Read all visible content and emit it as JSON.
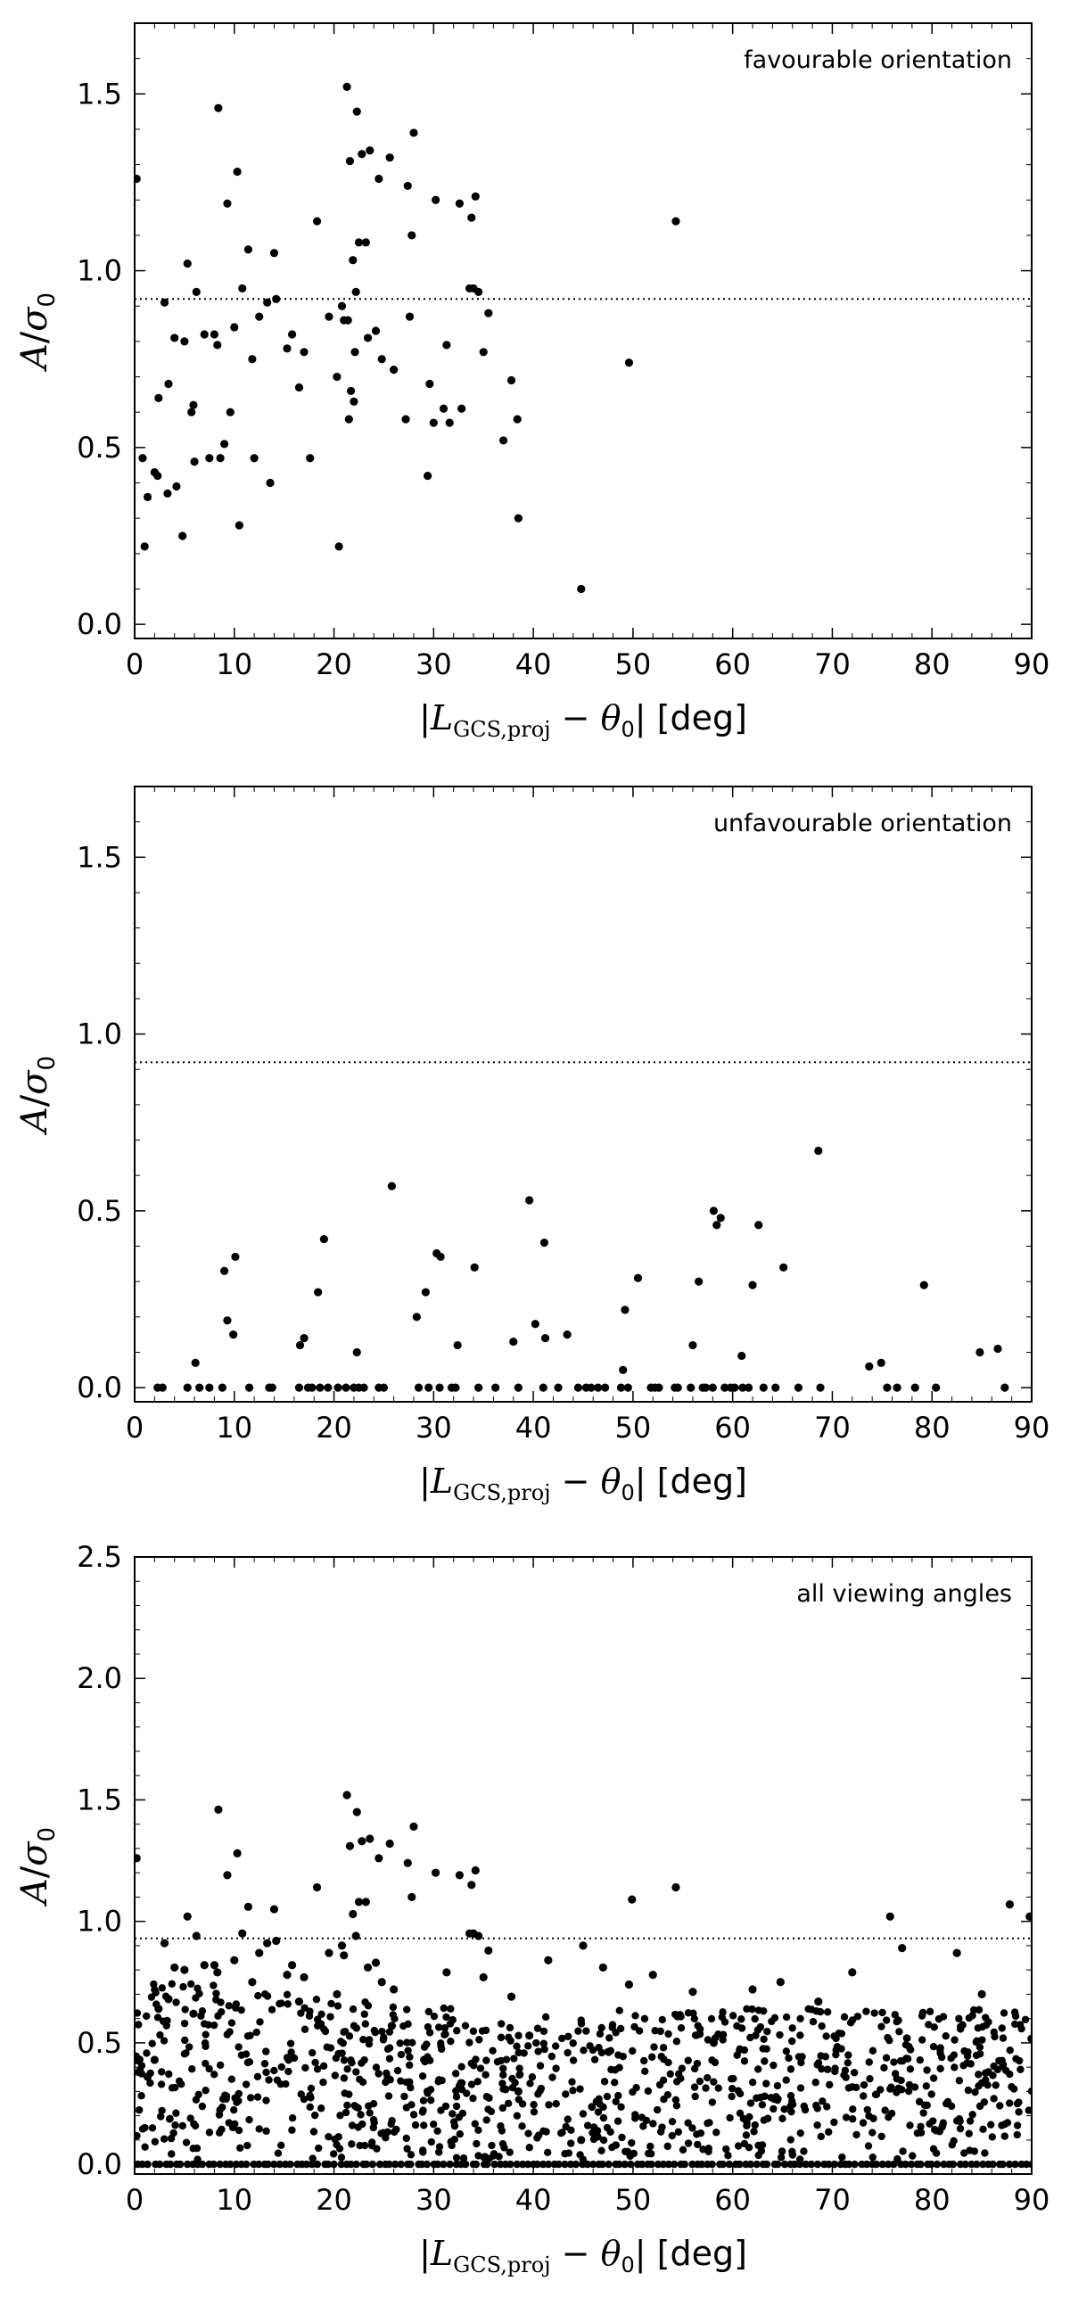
{
  "chart_data": [
    {
      "type": "scatter",
      "title": "",
      "annotation": "favourable orientation",
      "xlabel": "|L_GCS,proj − θ_0| [deg]",
      "ylabel": "A/σ_0",
      "xlim": [
        0,
        90
      ],
      "ylim": [
        -0.04,
        1.7
      ],
      "x_ticks": [
        0,
        10,
        20,
        30,
        40,
        50,
        60,
        70,
        80,
        90
      ],
      "y_ticks": [
        0.0,
        0.5,
        1.0,
        1.5
      ],
      "y_tick_labels": [
        "0.0",
        "0.5",
        "1.0",
        "1.5"
      ],
      "threshold": 0.92,
      "points": [
        [
          0.2,
          1.26
        ],
        [
          0.8,
          0.47
        ],
        [
          1.0,
          0.22
        ],
        [
          1.3,
          0.36
        ],
        [
          2.0,
          0.43
        ],
        [
          2.3,
          0.42
        ],
        [
          2.4,
          0.64
        ],
        [
          3.0,
          0.91
        ],
        [
          3.3,
          0.37
        ],
        [
          3.4,
          0.68
        ],
        [
          4.0,
          0.81
        ],
        [
          4.2,
          0.39
        ],
        [
          4.8,
          0.25
        ],
        [
          5.0,
          0.8
        ],
        [
          5.3,
          1.02
        ],
        [
          5.7,
          0.6
        ],
        [
          5.9,
          0.62
        ],
        [
          6.0,
          0.46
        ],
        [
          6.2,
          0.94
        ],
        [
          7.0,
          0.82
        ],
        [
          7.5,
          0.47
        ],
        [
          8.0,
          0.82
        ],
        [
          8.3,
          0.79
        ],
        [
          8.4,
          1.46
        ],
        [
          8.6,
          0.47
        ],
        [
          9.0,
          0.51
        ],
        [
          9.3,
          1.19
        ],
        [
          9.6,
          0.6
        ],
        [
          10.0,
          0.84
        ],
        [
          10.3,
          1.28
        ],
        [
          10.5,
          0.28
        ],
        [
          10.8,
          0.95
        ],
        [
          11.4,
          1.06
        ],
        [
          11.8,
          0.75
        ],
        [
          12.0,
          0.47
        ],
        [
          12.5,
          0.87
        ],
        [
          13.3,
          0.91
        ],
        [
          13.6,
          0.4
        ],
        [
          14.0,
          1.05
        ],
        [
          14.2,
          0.92
        ],
        [
          15.3,
          0.78
        ],
        [
          15.8,
          0.82
        ],
        [
          16.5,
          0.67
        ],
        [
          17.0,
          0.77
        ],
        [
          17.6,
          0.47
        ],
        [
          18.3,
          1.14
        ],
        [
          19.5,
          0.87
        ],
        [
          20.3,
          0.7
        ],
        [
          20.5,
          0.22
        ],
        [
          20.8,
          0.9
        ],
        [
          21.0,
          0.86
        ],
        [
          21.3,
          1.52
        ],
        [
          21.4,
          0.86
        ],
        [
          21.5,
          0.58
        ],
        [
          21.6,
          1.31
        ],
        [
          21.7,
          0.66
        ],
        [
          21.9,
          1.03
        ],
        [
          22.0,
          0.63
        ],
        [
          22.1,
          0.77
        ],
        [
          22.2,
          0.94
        ],
        [
          22.3,
          1.45
        ],
        [
          22.5,
          1.08
        ],
        [
          22.8,
          1.33
        ],
        [
          23.2,
          1.08
        ],
        [
          23.4,
          0.81
        ],
        [
          23.6,
          1.34
        ],
        [
          24.2,
          0.83
        ],
        [
          24.5,
          1.26
        ],
        [
          24.8,
          0.75
        ],
        [
          25.6,
          1.32
        ],
        [
          26.0,
          0.72
        ],
        [
          27.2,
          0.58
        ],
        [
          27.4,
          1.24
        ],
        [
          27.6,
          0.87
        ],
        [
          27.8,
          1.1
        ],
        [
          28.0,
          1.39
        ],
        [
          29.4,
          0.42
        ],
        [
          29.6,
          0.68
        ],
        [
          30.0,
          0.57
        ],
        [
          30.2,
          1.2
        ],
        [
          31.0,
          0.61
        ],
        [
          31.3,
          0.79
        ],
        [
          31.6,
          0.57
        ],
        [
          32.6,
          1.19
        ],
        [
          32.8,
          0.61
        ],
        [
          33.6,
          0.95
        ],
        [
          33.8,
          1.15
        ],
        [
          34.0,
          0.95
        ],
        [
          34.2,
          1.21
        ],
        [
          34.5,
          0.94
        ],
        [
          35.0,
          0.77
        ],
        [
          35.5,
          0.88
        ],
        [
          37.0,
          0.52
        ],
        [
          37.8,
          0.69
        ],
        [
          38.4,
          0.58
        ],
        [
          38.5,
          0.3
        ],
        [
          44.8,
          0.1
        ],
        [
          49.6,
          0.74
        ],
        [
          54.3,
          1.14
        ]
      ]
    },
    {
      "type": "scatter",
      "title": "",
      "annotation": "unfavourable orientation",
      "xlabel": "|L_GCS,proj − θ_0| [deg]",
      "ylabel": "A/σ_0",
      "xlim": [
        0,
        90
      ],
      "ylim": [
        -0.04,
        1.7
      ],
      "x_ticks": [
        0,
        10,
        20,
        30,
        40,
        50,
        60,
        70,
        80,
        90
      ],
      "y_ticks": [
        0.0,
        0.5,
        1.0,
        1.5
      ],
      "y_tick_labels": [
        "0.0",
        "0.5",
        "1.0",
        "1.5"
      ],
      "threshold": 0.92,
      "points": [
        [
          2.3,
          0.0
        ],
        [
          2.8,
          0.0
        ],
        [
          5.3,
          0.0
        ],
        [
          6.1,
          0.07
        ],
        [
          6.5,
          0.0
        ],
        [
          7.5,
          0.0
        ],
        [
          8.8,
          0.0
        ],
        [
          9.0,
          0.33
        ],
        [
          9.3,
          0.19
        ],
        [
          9.9,
          0.15
        ],
        [
          10.1,
          0.37
        ],
        [
          11.5,
          0.0
        ],
        [
          13.5,
          0.0
        ],
        [
          13.8,
          0.0
        ],
        [
          16.5,
          0.0
        ],
        [
          16.6,
          0.12
        ],
        [
          17.0,
          0.14
        ],
        [
          17.4,
          0.0
        ],
        [
          17.8,
          0.0
        ],
        [
          18.4,
          0.27
        ],
        [
          18.6,
          0.0
        ],
        [
          19.0,
          0.42
        ],
        [
          19.4,
          0.0
        ],
        [
          20.4,
          0.0
        ],
        [
          21.2,
          0.0
        ],
        [
          22.0,
          0.0
        ],
        [
          22.3,
          0.1
        ],
        [
          22.5,
          0.0
        ],
        [
          23.0,
          0.0
        ],
        [
          24.5,
          0.0
        ],
        [
          25.0,
          0.0
        ],
        [
          25.8,
          0.57
        ],
        [
          28.3,
          0.2
        ],
        [
          28.5,
          0.0
        ],
        [
          29.2,
          0.27
        ],
        [
          29.5,
          0.0
        ],
        [
          30.3,
          0.38
        ],
        [
          30.6,
          0.0
        ],
        [
          30.7,
          0.37
        ],
        [
          31.8,
          0.0
        ],
        [
          32.2,
          0.0
        ],
        [
          32.4,
          0.12
        ],
        [
          34.1,
          0.34
        ],
        [
          34.5,
          0.0
        ],
        [
          36.2,
          0.0
        ],
        [
          38.0,
          0.13
        ],
        [
          38.5,
          0.0
        ],
        [
          39.6,
          0.53
        ],
        [
          40.2,
          0.18
        ],
        [
          41.0,
          0.0
        ],
        [
          41.1,
          0.41
        ],
        [
          41.2,
          0.14
        ],
        [
          42.5,
          0.0
        ],
        [
          43.4,
          0.15
        ],
        [
          44.5,
          0.0
        ],
        [
          45.3,
          0.0
        ],
        [
          45.8,
          0.0
        ],
        [
          46.5,
          0.0
        ],
        [
          47.2,
          0.0
        ],
        [
          48.8,
          0.0
        ],
        [
          49.0,
          0.05
        ],
        [
          49.2,
          0.22
        ],
        [
          49.5,
          0.0
        ],
        [
          50.5,
          0.31
        ],
        [
          51.8,
          0.0
        ],
        [
          52.2,
          0.0
        ],
        [
          52.6,
          0.0
        ],
        [
          54.2,
          0.0
        ],
        [
          54.5,
          0.0
        ],
        [
          55.8,
          0.0
        ],
        [
          56.0,
          0.12
        ],
        [
          56.6,
          0.3
        ],
        [
          57.0,
          0.0
        ],
        [
          57.3,
          0.0
        ],
        [
          58.0,
          0.0
        ],
        [
          58.1,
          0.5
        ],
        [
          58.4,
          0.46
        ],
        [
          58.8,
          0.48
        ],
        [
          59.2,
          0.0
        ],
        [
          59.8,
          0.0
        ],
        [
          60.2,
          0.0
        ],
        [
          60.9,
          0.09
        ],
        [
          61.0,
          0.0
        ],
        [
          61.6,
          0.0
        ],
        [
          62.0,
          0.29
        ],
        [
          62.6,
          0.46
        ],
        [
          63.1,
          0.0
        ],
        [
          64.3,
          0.0
        ],
        [
          65.1,
          0.34
        ],
        [
          66.6,
          0.0
        ],
        [
          68.6,
          0.67
        ],
        [
          68.8,
          0.0
        ],
        [
          73.7,
          0.06
        ],
        [
          74.9,
          0.07
        ],
        [
          75.5,
          0.0
        ],
        [
          76.5,
          0.0
        ],
        [
          78.3,
          0.0
        ],
        [
          79.2,
          0.29
        ],
        [
          80.4,
          0.0
        ],
        [
          84.8,
          0.1
        ],
        [
          86.6,
          0.11
        ],
        [
          87.3,
          0.0
        ]
      ]
    },
    {
      "type": "scatter",
      "title": "",
      "annotation": "all viewing angles",
      "xlabel": "|L_GCS,proj − θ_0| [deg]",
      "ylabel": "A/σ_0",
      "xlim": [
        0,
        90
      ],
      "ylim": [
        -0.04,
        2.5
      ],
      "x_ticks": [
        0,
        10,
        20,
        30,
        40,
        50,
        60,
        70,
        80,
        90
      ],
      "y_ticks": [
        0.0,
        0.5,
        1.0,
        1.5,
        2.0,
        2.5
      ],
      "y_tick_labels": [
        "0.0",
        "0.5",
        "1.0",
        "1.5",
        "2.0",
        "2.5"
      ],
      "threshold": 0.93,
      "zero_row": true,
      "points": [
        [
          0.2,
          1.26
        ],
        [
          1.3,
          0.36
        ],
        [
          2.0,
          0.43
        ],
        [
          2.4,
          0.64
        ],
        [
          3.0,
          0.91
        ],
        [
          3.4,
          0.68
        ],
        [
          4.0,
          0.81
        ],
        [
          5.0,
          0.8
        ],
        [
          5.3,
          1.02
        ],
        [
          5.9,
          0.62
        ],
        [
          6.2,
          0.94
        ],
        [
          7.0,
          0.82
        ],
        [
          8.0,
          0.82
        ],
        [
          8.3,
          0.79
        ],
        [
          8.4,
          1.46
        ],
        [
          9.3,
          1.19
        ],
        [
          10.0,
          0.84
        ],
        [
          10.3,
          1.28
        ],
        [
          10.8,
          0.95
        ],
        [
          11.4,
          1.06
        ],
        [
          11.8,
          0.75
        ],
        [
          12.5,
          0.87
        ],
        [
          13.3,
          0.91
        ],
        [
          14.0,
          1.05
        ],
        [
          14.2,
          0.92
        ],
        [
          15.3,
          0.78
        ],
        [
          15.8,
          0.82
        ],
        [
          16.5,
          0.67
        ],
        [
          17.0,
          0.77
        ],
        [
          18.3,
          1.14
        ],
        [
          19.5,
          0.87
        ],
        [
          20.3,
          0.7
        ],
        [
          20.8,
          0.9
        ],
        [
          21.0,
          0.86
        ],
        [
          21.3,
          1.52
        ],
        [
          21.6,
          1.31
        ],
        [
          21.9,
          1.03
        ],
        [
          22.2,
          0.94
        ],
        [
          22.3,
          1.45
        ],
        [
          22.5,
          1.08
        ],
        [
          22.8,
          1.33
        ],
        [
          23.2,
          1.08
        ],
        [
          23.4,
          0.81
        ],
        [
          23.6,
          1.34
        ],
        [
          24.2,
          0.83
        ],
        [
          24.5,
          1.26
        ],
        [
          24.8,
          0.75
        ],
        [
          25.6,
          1.32
        ],
        [
          26.0,
          0.72
        ],
        [
          27.4,
          1.24
        ],
        [
          27.8,
          1.1
        ],
        [
          28.0,
          1.39
        ],
        [
          30.2,
          1.2
        ],
        [
          31.3,
          0.79
        ],
        [
          32.6,
          1.19
        ],
        [
          33.6,
          0.95
        ],
        [
          33.8,
          1.15
        ],
        [
          34.0,
          0.95
        ],
        [
          34.2,
          1.21
        ],
        [
          34.5,
          0.94
        ],
        [
          35.0,
          0.77
        ],
        [
          35.5,
          0.88
        ],
        [
          37.8,
          0.69
        ],
        [
          49.6,
          0.74
        ],
        [
          49.9,
          1.09
        ],
        [
          54.3,
          1.14
        ],
        [
          64.8,
          0.75
        ],
        [
          75.8,
          1.02
        ],
        [
          77.0,
          0.89
        ],
        [
          82.5,
          0.87
        ],
        [
          87.8,
          1.07
        ],
        [
          89.8,
          1.02
        ],
        [
          44.8,
          0.1
        ],
        [
          38.5,
          0.3
        ],
        [
          68.6,
          0.67
        ],
        [
          25.8,
          0.57
        ],
        [
          39.6,
          0.53
        ],
        [
          58.1,
          0.5
        ],
        [
          47.0,
          0.81
        ],
        [
          45.0,
          0.9
        ],
        [
          41.5,
          0.84
        ],
        [
          52.0,
          0.78
        ],
        [
          56.0,
          0.71
        ],
        [
          62.0,
          0.72
        ],
        [
          72.0,
          0.79
        ],
        [
          85.0,
          0.7
        ]
      ]
    }
  ]
}
